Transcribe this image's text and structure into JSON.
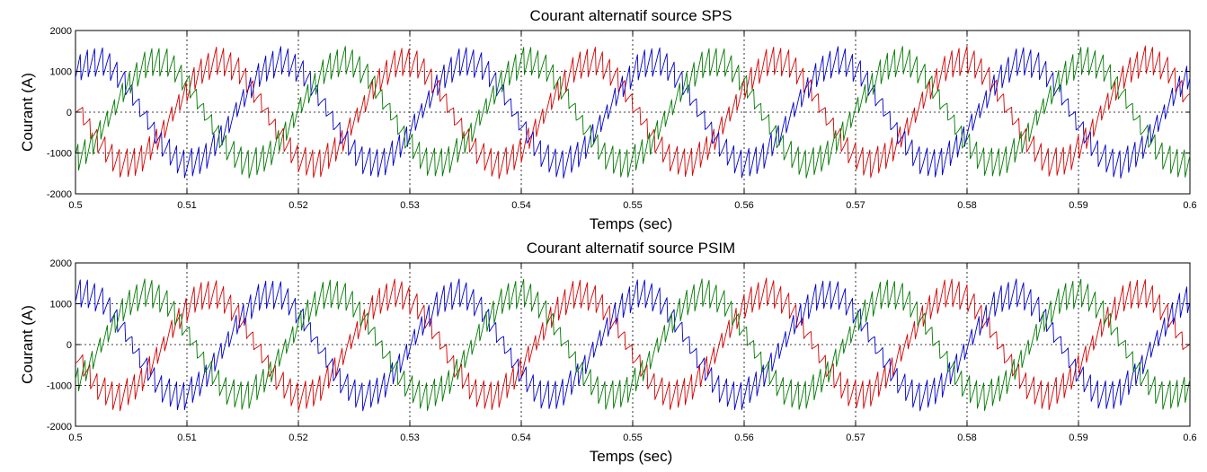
{
  "colors": {
    "phase_a": "#d40000",
    "phase_b": "#0000c8",
    "phase_c": "#007a00"
  },
  "chart_data": [
    {
      "type": "line",
      "title": "Courant alternatif source SPS",
      "xlabel": "Temps (sec)",
      "ylabel": "Courant (A)",
      "xlim": [
        0.5,
        0.6
      ],
      "ylim": [
        -2000,
        2000
      ],
      "xticks": [
        0.5,
        0.51,
        0.52,
        0.53,
        0.54,
        0.55,
        0.56,
        0.57,
        0.58,
        0.59,
        0.6
      ],
      "xtick_labels": [
        "0.5",
        "0.51",
        "0.52",
        "0.53",
        "0.54",
        "0.55",
        "0.56",
        "0.57",
        "0.58",
        "0.59",
        "0.6"
      ],
      "yticks": [
        -2000,
        -1000,
        0,
        1000,
        2000
      ],
      "ytick_labels": [
        "-2000",
        "-1000",
        "0",
        "1000",
        "2000"
      ],
      "grid": true,
      "series": [
        {
          "color": "#d40000",
          "frequency_hz": 60,
          "amplitude": 1250,
          "ripple": 380,
          "phase_deg": 170
        },
        {
          "color": "#0000c8",
          "frequency_hz": 60,
          "amplitude": 1250,
          "ripple": 380,
          "phase_deg": 50
        },
        {
          "color": "#007a00",
          "frequency_hz": 60,
          "amplitude": 1250,
          "ripple": 380,
          "phase_deg": -70
        }
      ]
    },
    {
      "type": "line",
      "title": "Courant alternatif source PSIM",
      "xlabel": "Temps (sec)",
      "ylabel": "Courant (A)",
      "xlim": [
        0.5,
        0.6
      ],
      "ylim": [
        -2000,
        2000
      ],
      "xticks": [
        0.5,
        0.51,
        0.52,
        0.53,
        0.54,
        0.55,
        0.56,
        0.57,
        0.58,
        0.59,
        0.6
      ],
      "xtick_labels": [
        "0.5",
        "0.51",
        "0.52",
        "0.53",
        "0.54",
        "0.55",
        "0.56",
        "0.57",
        "0.58",
        "0.59",
        "0.6"
      ],
      "yticks": [
        -2000,
        -1000,
        0,
        1000,
        2000
      ],
      "ytick_labels": [
        "-2000",
        "-1000",
        "0",
        "1000",
        "2000"
      ],
      "grid": true,
      "series": [
        {
          "color": "#d40000",
          "frequency_hz": 60,
          "amplitude": 1250,
          "ripple": 380,
          "phase_deg": 190
        },
        {
          "color": "#0000c8",
          "frequency_hz": 60,
          "amplitude": 1250,
          "ripple": 380,
          "phase_deg": 70
        },
        {
          "color": "#007a00",
          "frequency_hz": 60,
          "amplitude": 1250,
          "ripple": 380,
          "phase_deg": -50
        }
      ]
    }
  ]
}
